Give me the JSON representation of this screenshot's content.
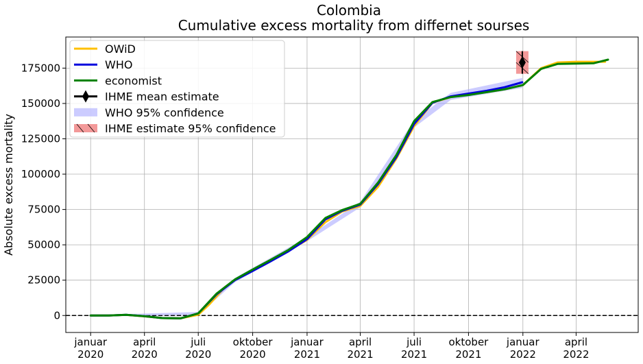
{
  "chart_data": {
    "type": "line",
    "title": "Colombia",
    "subtitle": "Cumulative excess mortality from differnet sourses",
    "xlabel": "",
    "ylabel": "Absolute excess mortality",
    "ylim": [
      -12000,
      197000
    ],
    "xlim": [
      "2019-11-20",
      "2022-07-15"
    ],
    "grid": true,
    "legend_position": "upper-left",
    "yticks": [
      0,
      25000,
      50000,
      75000,
      100000,
      125000,
      150000,
      175000
    ],
    "ytick_labels": [
      "0",
      "25000",
      "50000",
      "75000",
      "100000",
      "125000",
      "150000",
      "175000"
    ],
    "xticks": [
      {
        "date": "2020-01-01",
        "month": "januar",
        "year": "2020"
      },
      {
        "date": "2020-04-01",
        "month": "april",
        "year": "2020"
      },
      {
        "date": "2020-07-01",
        "month": "juli",
        "year": "2020"
      },
      {
        "date": "2020-10-01",
        "month": "oktober",
        "year": "2020"
      },
      {
        "date": "2021-01-01",
        "month": "januar",
        "year": "2021"
      },
      {
        "date": "2021-04-01",
        "month": "april",
        "year": "2021"
      },
      {
        "date": "2021-07-01",
        "month": "juli",
        "year": "2021"
      },
      {
        "date": "2021-10-01",
        "month": "oktober",
        "year": "2021"
      },
      {
        "date": "2022-01-01",
        "month": "januar",
        "year": "2022"
      },
      {
        "date": "2022-04-01",
        "month": "april",
        "year": "2022"
      }
    ],
    "zero_line": {
      "value": 0,
      "style": "dashed",
      "color": "#000000"
    },
    "series": [
      {
        "name": "OWiD",
        "color": "#ffc000",
        "points": [
          [
            "2020-01-01",
            0
          ],
          [
            "2020-02-01",
            0
          ],
          [
            "2020-03-01",
            400
          ],
          [
            "2020-04-01",
            -600
          ],
          [
            "2020-05-01",
            -1800
          ],
          [
            "2020-06-01",
            -2000
          ],
          [
            "2020-07-01",
            500
          ],
          [
            "2020-07-20",
            8000
          ],
          [
            "2020-08-15",
            20000
          ],
          [
            "2020-09-01",
            25000
          ],
          [
            "2020-10-01",
            32000
          ],
          [
            "2020-11-01",
            39500
          ],
          [
            "2020-12-01",
            46000
          ],
          [
            "2021-01-01",
            53500
          ],
          [
            "2021-02-01",
            66000
          ],
          [
            "2021-03-01",
            73500
          ],
          [
            "2021-04-01",
            77500
          ],
          [
            "2021-05-01",
            91000
          ],
          [
            "2021-06-01",
            111000
          ],
          [
            "2021-07-01",
            134000
          ],
          [
            "2021-08-01",
            150500
          ],
          [
            "2021-09-01",
            154500
          ],
          [
            "2021-10-01",
            156500
          ],
          [
            "2021-11-01",
            158000
          ],
          [
            "2021-12-01",
            160000
          ],
          [
            "2022-01-01",
            163000
          ],
          [
            "2022-02-01",
            175000
          ],
          [
            "2022-03-01",
            179000
          ],
          [
            "2022-04-01",
            179500
          ],
          [
            "2022-05-01",
            179500
          ],
          [
            "2022-05-20",
            179500
          ]
        ]
      },
      {
        "name": "WHO",
        "color": "#0000dd",
        "points": [
          [
            "2020-01-01",
            0
          ],
          [
            "2020-02-01",
            0
          ],
          [
            "2020-03-01",
            500
          ],
          [
            "2020-04-01",
            -500
          ],
          [
            "2020-05-01",
            -1800
          ],
          [
            "2020-06-01",
            -2000
          ],
          [
            "2020-07-01",
            1500
          ],
          [
            "2020-08-01",
            15000
          ],
          [
            "2020-09-01",
            25000
          ],
          [
            "2020-10-01",
            31500
          ],
          [
            "2020-11-01",
            38500
          ],
          [
            "2020-12-01",
            45500
          ],
          [
            "2021-01-01",
            54000
          ],
          [
            "2021-02-01",
            68000
          ],
          [
            "2021-03-01",
            74000
          ],
          [
            "2021-04-01",
            78500
          ],
          [
            "2021-05-01",
            93000
          ],
          [
            "2021-06-01",
            112000
          ],
          [
            "2021-07-01",
            135500
          ],
          [
            "2021-08-01",
            150500
          ],
          [
            "2021-09-01",
            155000
          ],
          [
            "2021-10-01",
            157000
          ],
          [
            "2021-11-01",
            159000
          ],
          [
            "2021-12-01",
            161500
          ],
          [
            "2021-12-31",
            165000
          ]
        ]
      },
      {
        "name": "economist",
        "color": "#008000",
        "points": [
          [
            "2020-01-01",
            0
          ],
          [
            "2020-02-01",
            0
          ],
          [
            "2020-03-01",
            500
          ],
          [
            "2020-04-01",
            -500
          ],
          [
            "2020-05-01",
            -1800
          ],
          [
            "2020-06-01",
            -2000
          ],
          [
            "2020-07-01",
            1500
          ],
          [
            "2020-08-01",
            15500
          ],
          [
            "2020-09-01",
            25500
          ],
          [
            "2020-10-01",
            32500
          ],
          [
            "2020-11-01",
            39500
          ],
          [
            "2020-12-01",
            46500
          ],
          [
            "2021-01-01",
            55500
          ],
          [
            "2021-02-01",
            69000
          ],
          [
            "2021-03-01",
            74500
          ],
          [
            "2021-04-01",
            79000
          ],
          [
            "2021-05-01",
            94000
          ],
          [
            "2021-06-01",
            113500
          ],
          [
            "2021-07-01",
            137500
          ],
          [
            "2021-08-01",
            151000
          ],
          [
            "2021-09-01",
            154500
          ],
          [
            "2021-10-01",
            156000
          ],
          [
            "2021-11-01",
            158000
          ],
          [
            "2021-12-01",
            160000
          ],
          [
            "2022-01-01",
            163000
          ],
          [
            "2022-02-01",
            174500
          ],
          [
            "2022-03-01",
            178000
          ],
          [
            "2022-04-01",
            178200
          ],
          [
            "2022-05-01",
            178500
          ],
          [
            "2022-05-25",
            181000
          ]
        ]
      }
    ],
    "who_confidence": {
      "name": "WHO 95% confidence",
      "color": "#aaaaff",
      "band": [
        [
          "2020-01-01",
          -300,
          300
        ],
        [
          "2020-07-01",
          500,
          2500
        ],
        [
          "2020-09-01",
          23500,
          26500
        ],
        [
          "2021-01-01",
          52500,
          55500
        ],
        [
          "2021-04-01",
          76500,
          80500
        ],
        [
          "2021-07-01",
          133000,
          138000
        ],
        [
          "2021-09-01",
          152500,
          157500
        ],
        [
          "2021-12-31",
          161000,
          168000
        ]
      ]
    },
    "ihme": {
      "mean_label": "IHME mean estimate",
      "ci_label": " IHME estimate 95% confidence",
      "date": "2021-12-31",
      "mean": 179000,
      "low": 171000,
      "high": 187000,
      "marker_color": "#000000",
      "ci_color": "#f08080"
    }
  }
}
